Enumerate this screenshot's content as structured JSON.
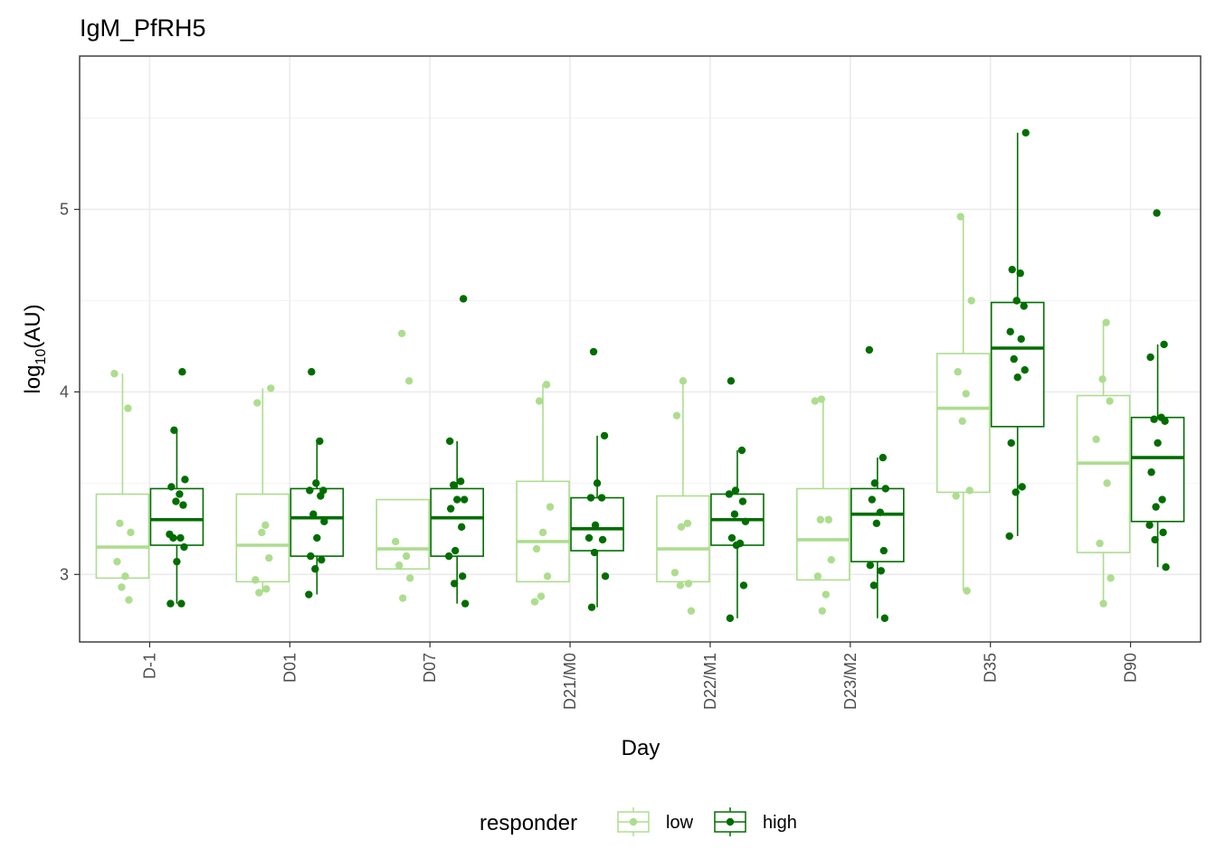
{
  "chart_data": {
    "type": "box",
    "title": "IgM_PfRH5",
    "xlabel": "Day",
    "ylabel_base": "log",
    "ylabel_sub": "10",
    "ylabel_tail": "(AU)",
    "ylim": [
      2.63,
      5.84
    ],
    "yticks": [
      3,
      4,
      5
    ],
    "categories": [
      "D-1",
      "D01",
      "D07",
      "D21/M0",
      "D22/M1",
      "D23/M2",
      "D35",
      "D90"
    ],
    "legend": {
      "title": "responder",
      "position": "bottom"
    },
    "series": [
      {
        "name": "low",
        "color": "#addd8e",
        "boxes": [
          {
            "lower": 2.98,
            "q1": 2.98,
            "median": 3.15,
            "q3": 3.44,
            "upper": 4.1
          },
          {
            "lower": 2.9,
            "q1": 2.96,
            "median": 3.16,
            "q3": 3.44,
            "upper": 4.02
          },
          {
            "lower": 3.03,
            "q1": 3.03,
            "median": 3.14,
            "q3": 3.41,
            "upper": 3.41
          },
          {
            "lower": 2.96,
            "q1": 2.96,
            "median": 3.18,
            "q3": 3.51,
            "upper": 4.04
          },
          {
            "lower": 2.96,
            "q1": 2.96,
            "median": 3.14,
            "q3": 3.43,
            "upper": 4.06
          },
          {
            "lower": 2.97,
            "q1": 2.97,
            "median": 3.19,
            "q3": 3.47,
            "upper": 3.96
          },
          {
            "lower": 2.91,
            "q1": 3.45,
            "median": 3.91,
            "q3": 4.21,
            "upper": 4.96
          },
          {
            "lower": 2.84,
            "q1": 3.12,
            "median": 3.61,
            "q3": 3.98,
            "upper": 4.38
          }
        ],
        "points": [
          [
            4.1,
            3.91,
            3.28,
            3.23,
            3.07,
            2.99,
            2.93,
            2.86
          ],
          [
            4.02,
            3.94,
            3.27,
            3.23,
            3.09,
            2.97,
            2.92,
            2.9
          ],
          [
            4.32,
            4.06,
            3.18,
            3.1,
            3.05,
            2.98,
            2.87
          ],
          [
            4.04,
            3.95,
            3.37,
            3.23,
            3.14,
            2.99,
            2.88,
            2.85
          ],
          [
            4.06,
            3.87,
            3.28,
            3.26,
            3.01,
            2.95,
            2.94,
            2.8
          ],
          [
            3.96,
            3.95,
            3.3,
            3.3,
            3.08,
            2.99,
            2.89,
            2.8
          ],
          [
            4.96,
            4.5,
            4.11,
            3.99,
            3.84,
            3.46,
            3.43,
            2.91
          ],
          [
            4.38,
            4.07,
            3.95,
            3.74,
            3.5,
            3.17,
            2.98,
            2.84
          ]
        ]
      },
      {
        "name": "high",
        "color": "#006d00",
        "boxes": [
          {
            "lower": 2.84,
            "q1": 3.16,
            "median": 3.3,
            "q3": 3.47,
            "upper": 3.79
          },
          {
            "lower": 2.89,
            "q1": 3.1,
            "median": 3.31,
            "q3": 3.47,
            "upper": 3.73
          },
          {
            "lower": 2.84,
            "q1": 3.1,
            "median": 3.31,
            "q3": 3.47,
            "upper": 3.73
          },
          {
            "lower": 2.82,
            "q1": 3.13,
            "median": 3.25,
            "q3": 3.42,
            "upper": 3.76
          },
          {
            "lower": 2.76,
            "q1": 3.16,
            "median": 3.3,
            "q3": 3.44,
            "upper": 3.68
          },
          {
            "lower": 2.76,
            "q1": 3.07,
            "median": 3.33,
            "q3": 3.47,
            "upper": 3.64
          },
          {
            "lower": 3.21,
            "q1": 3.81,
            "median": 4.24,
            "q3": 4.49,
            "upper": 5.42
          },
          {
            "lower": 3.04,
            "q1": 3.29,
            "median": 3.64,
            "q3": 3.86,
            "upper": 4.26
          }
        ],
        "points": [
          [
            4.11,
            3.79,
            3.52,
            3.48,
            3.44,
            3.4,
            3.38,
            3.22,
            3.2,
            3.2,
            3.15,
            3.07,
            2.84,
            2.84
          ],
          [
            4.11,
            3.73,
            3.5,
            3.46,
            3.46,
            3.43,
            3.33,
            3.29,
            3.2,
            3.1,
            3.08,
            3.03,
            2.89
          ],
          [
            4.51,
            3.73,
            3.51,
            3.49,
            3.41,
            3.41,
            3.36,
            3.26,
            3.13,
            3.1,
            2.99,
            2.95,
            2.84
          ],
          [
            4.22,
            3.76,
            3.5,
            3.42,
            3.42,
            3.27,
            3.2,
            3.19,
            3.12,
            2.99,
            2.82
          ],
          [
            4.06,
            3.68,
            3.46,
            3.44,
            3.4,
            3.33,
            3.29,
            3.2,
            3.17,
            3.16,
            2.94,
            2.76
          ],
          [
            4.23,
            3.64,
            3.5,
            3.47,
            3.41,
            3.34,
            3.28,
            3.13,
            3.05,
            3.02,
            2.94,
            2.76
          ],
          [
            5.42,
            4.67,
            4.65,
            4.5,
            4.47,
            4.33,
            4.29,
            4.18,
            4.12,
            4.08,
            3.72,
            3.48,
            3.45,
            3.21
          ],
          [
            4.98,
            4.26,
            4.19,
            3.86,
            3.85,
            3.84,
            3.72,
            3.56,
            3.41,
            3.37,
            3.27,
            3.23,
            3.19,
            3.04
          ]
        ]
      }
    ]
  }
}
